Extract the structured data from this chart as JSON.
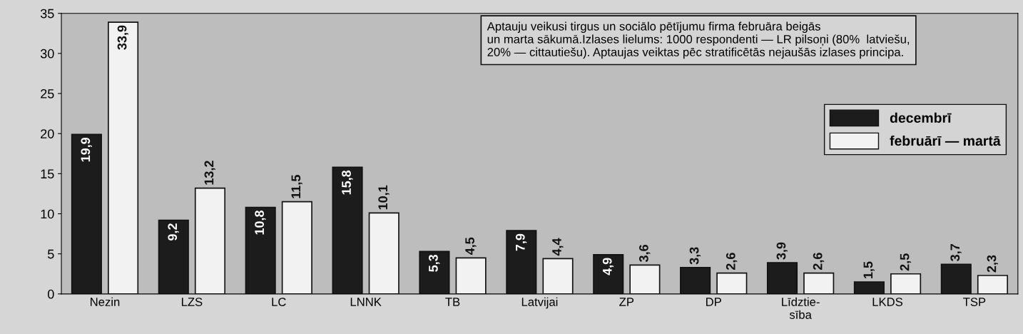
{
  "chart_data": {
    "type": "bar",
    "categories": [
      "Nezin",
      "LZS",
      "LC",
      "LNNK",
      "TB",
      "Latvijai",
      "ZP",
      "DP",
      "Līdztie-\nsība",
      "LKDS",
      "TSP"
    ],
    "series": [
      {
        "name": "decembrī",
        "color": "#1c1c1c",
        "values": [
          19.9,
          9.2,
          10.8,
          15.8,
          5.3,
          7.9,
          4.9,
          3.3,
          3.9,
          1.5,
          3.7
        ],
        "value_labels": [
          "19,9",
          "9,2",
          "10,8",
          "15,8",
          "5,3",
          "7,9",
          "4,9",
          "3,3",
          "3,9",
          "1,5",
          "3,7"
        ]
      },
      {
        "name": "februārī — martā",
        "color": "#f2f2f2",
        "values": [
          33.9,
          13.2,
          11.5,
          10.1,
          4.5,
          4.4,
          3.6,
          2.6,
          2.6,
          2.5,
          2.3
        ],
        "value_labels": [
          "33,9",
          "13,2",
          "11,5",
          "10,1",
          "4,5",
          "4,4",
          "3,6",
          "2,6",
          "2,6",
          "2,5",
          "2,3"
        ]
      }
    ],
    "ylim": [
      0,
      35
    ],
    "yticks": [
      0,
      5,
      10,
      15,
      20,
      25,
      30,
      35
    ],
    "grid": false,
    "legend": "top right",
    "annotations": [
      "Aptauju veikusi tirgus un sociālo pētījumu firma februāra beigās\nun marta sākumā.Izlases lielums: 1000 respondenti — LR pilsoņi (80%  latviešu,\n20% — cittautiešu). Aptaujas veiktas pēc stratificētās nejaušās izlases principa."
    ]
  }
}
